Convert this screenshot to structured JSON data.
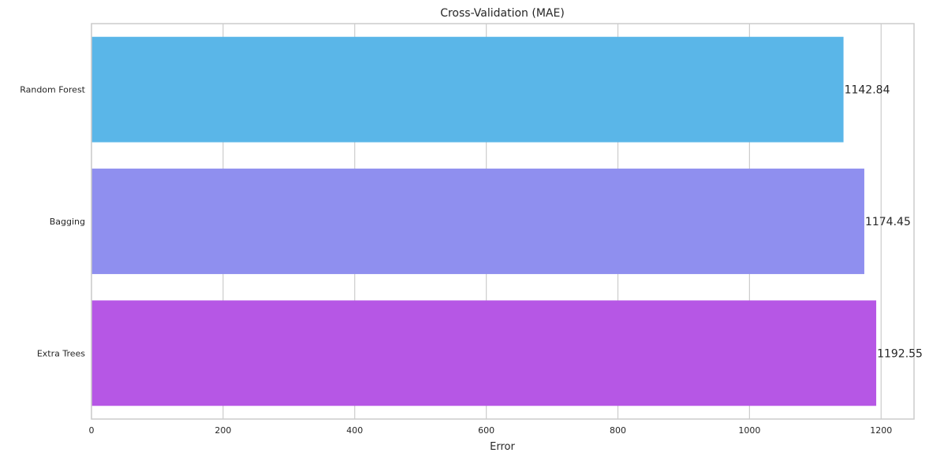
{
  "chart_data": {
    "type": "bar",
    "orientation": "horizontal",
    "title": "Cross-Validation (MAE)",
    "xlabel": "Error",
    "ylabel": "",
    "categories": [
      "Random Forest",
      "Bagging",
      "Extra Trees"
    ],
    "values": [
      1142.84,
      1174.45,
      1192.55
    ],
    "value_labels": [
      "1142.84",
      "1174.45",
      "1192.55"
    ],
    "colors": [
      "#5ab6e8",
      "#8f8fef",
      "#b657e5"
    ],
    "xlim": [
      0,
      1250
    ],
    "xticks": [
      0,
      200,
      400,
      600,
      800,
      1000,
      1200
    ],
    "grid": true,
    "legend": "none"
  }
}
